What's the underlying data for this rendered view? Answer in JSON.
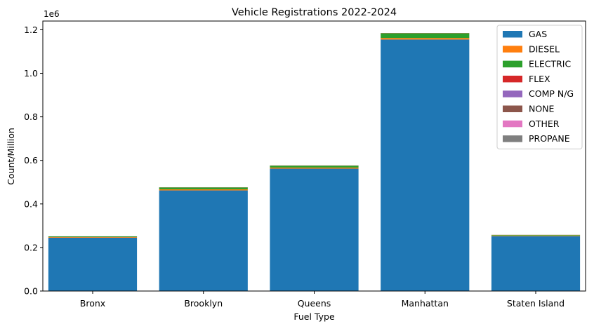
{
  "chart_data": {
    "type": "bar",
    "stacked": true,
    "title": "Vehicle Registrations 2022-2024",
    "xlabel": "Fuel Type",
    "ylabel": "Count/Million",
    "y_offset_label": "1e6",
    "categories": [
      "Bronx",
      "Brooklyn",
      "Queens",
      "Manhattan",
      "Staten Island"
    ],
    "ylim": [
      0,
      1240000
    ],
    "yticks": [
      0,
      200000,
      400000,
      600000,
      800000,
      1000000,
      1200000
    ],
    "ytick_labels": [
      "0.0",
      "0.2",
      "0.4",
      "0.6",
      "0.8",
      "1.0",
      "1.2"
    ],
    "grid": false,
    "legend_position": "top-right",
    "series": [
      {
        "name": "GAS",
        "color": "#1f77b4",
        "values": [
          245000,
          462000,
          562000,
          1155000,
          252000
        ]
      },
      {
        "name": "DIESEL",
        "color": "#ff7f0e",
        "values": [
          3000,
          5000,
          5000,
          7000,
          3000
        ]
      },
      {
        "name": "ELECTRIC",
        "color": "#2ca02c",
        "values": [
          3000,
          9000,
          9000,
          22000,
          3000
        ]
      },
      {
        "name": "FLEX",
        "color": "#d62728",
        "values": [
          300,
          600,
          700,
          900,
          300
        ]
      },
      {
        "name": "COMP N/G",
        "color": "#9467bd",
        "values": [
          10,
          20,
          20,
          30,
          10
        ]
      },
      {
        "name": "NONE",
        "color": "#8c564b",
        "values": [
          10,
          20,
          20,
          30,
          10
        ]
      },
      {
        "name": "OTHER",
        "color": "#e377c2",
        "values": [
          5,
          10,
          10,
          15,
          5
        ]
      },
      {
        "name": "PROPANE",
        "color": "#7f7f7f",
        "values": [
          2,
          5,
          5,
          5,
          2
        ]
      }
    ]
  }
}
